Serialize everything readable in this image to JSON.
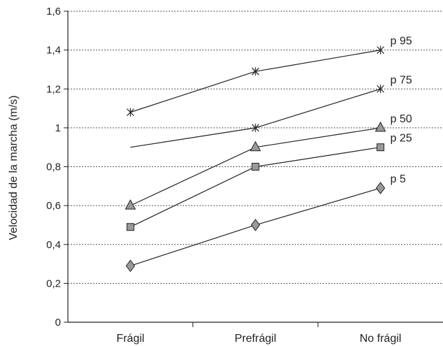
{
  "chart_data": {
    "type": "line",
    "categories": [
      "Frágil",
      "Prefrágil",
      "No frágil"
    ],
    "ylabel": "Velocidad de la marcha (m/s)",
    "xlabel": "",
    "ylim": [
      0,
      1.6
    ],
    "yticks": [
      {
        "value": 0,
        "label": "0"
      },
      {
        "value": 0.2,
        "label": "0,2"
      },
      {
        "value": 0.4,
        "label": "0,4"
      },
      {
        "value": 0.6,
        "label": "0,6"
      },
      {
        "value": 0.8,
        "label": "0,8"
      },
      {
        "value": 1.0,
        "label": "1"
      },
      {
        "value": 1.2,
        "label": "1,2"
      },
      {
        "value": 1.4,
        "label": "1,4"
      },
      {
        "value": 1.6,
        "label": "1,6"
      }
    ],
    "grid": "horizontal dotted",
    "legend": "inline labels at right end of each line",
    "series": [
      {
        "name": "p 95",
        "values": [
          1.08,
          1.29,
          1.4
        ],
        "marker": "star"
      },
      {
        "name": "p 75",
        "values": [
          0.9,
          1.0,
          1.2
        ],
        "marker": "star-hidden-first"
      },
      {
        "name": "p 50",
        "values": [
          0.6,
          0.9,
          1.0
        ],
        "marker": "triangle"
      },
      {
        "name": "p 25",
        "values": [
          0.49,
          0.8,
          0.9
        ],
        "marker": "square"
      },
      {
        "name": "p 5",
        "values": [
          0.29,
          0.5,
          0.69
        ],
        "marker": "diamond"
      }
    ],
    "colors": {
      "line": "#222222",
      "marker_fill": "#999999",
      "grid": "#555555"
    }
  }
}
